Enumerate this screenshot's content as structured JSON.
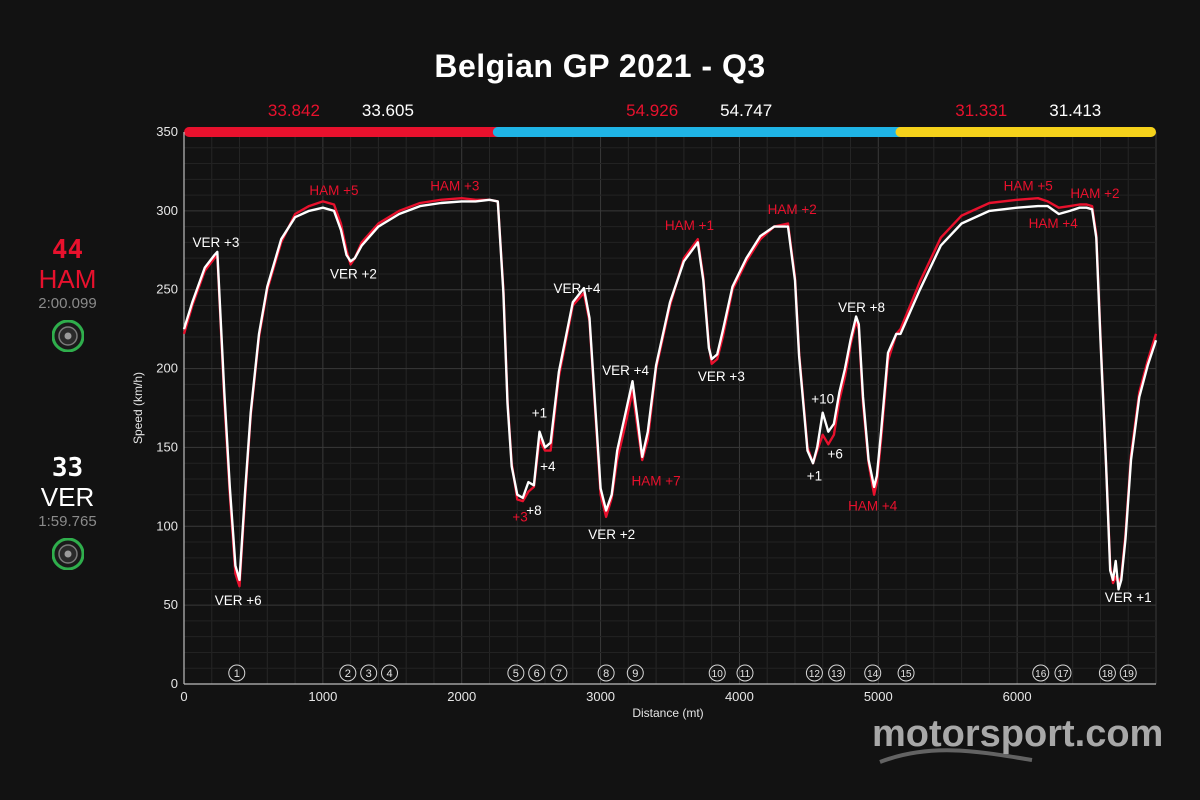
{
  "title": "Belgian GP 2021 - Q3",
  "drivers": {
    "ham": {
      "number": "44",
      "code": "HAM",
      "lap_time": "2:00.099",
      "color": "#e8112d",
      "tyre": "soft-green-tyre-icon"
    },
    "ver": {
      "number": "33",
      "code": "VER",
      "lap_time": "1:59.765",
      "color": "#ffffff",
      "tyre": "soft-green-tyre-icon"
    }
  },
  "watermark": "motorsport.com",
  "chart_data": {
    "type": "line",
    "xlabel": "Distance (mt)",
    "ylabel": "Speed (km/h)",
    "xlim": [
      0,
      7000
    ],
    "ylim": [
      0,
      350
    ],
    "xticks": [
      0,
      1000,
      2000,
      3000,
      4000,
      5000,
      6000
    ],
    "yticks": [
      0,
      50,
      100,
      150,
      200,
      250,
      300,
      350
    ],
    "grid": true,
    "sectors": [
      {
        "x_start": 0,
        "x_end": 2260,
        "color": "#e8112d",
        "ham": "33.842",
        "ver": "33.605"
      },
      {
        "x_start": 2260,
        "x_end": 5160,
        "color": "#1fb4e6",
        "ham": "54.926",
        "ver": "54.747"
      },
      {
        "x_start": 5160,
        "x_end": 7000,
        "color": "#f5d21b",
        "ham": "31.331",
        "ver": "31.413"
      }
    ],
    "corners": [
      {
        "label": "1",
        "x": 380
      },
      {
        "label": "2",
        "x": 1180
      },
      {
        "label": "3",
        "x": 1330
      },
      {
        "label": "4",
        "x": 1480
      },
      {
        "label": "5",
        "x": 2390
      },
      {
        "label": "6",
        "x": 2540
      },
      {
        "label": "7",
        "x": 2700
      },
      {
        "label": "8",
        "x": 3040
      },
      {
        "label": "9",
        "x": 3250
      },
      {
        "label": "10",
        "x": 3840
      },
      {
        "label": "11",
        "x": 4040
      },
      {
        "label": "12",
        "x": 4540
      },
      {
        "label": "13",
        "x": 4700
      },
      {
        "label": "14",
        "x": 4960
      },
      {
        "label": "15",
        "x": 5200
      },
      {
        "label": "16",
        "x": 6170
      },
      {
        "label": "17",
        "x": 6330
      },
      {
        "label": "18",
        "x": 6650
      },
      {
        "label": "19",
        "x": 6800
      }
    ],
    "series": [
      {
        "name": "HAM",
        "color": "#e8112d",
        "x": [
          0,
          60,
          150,
          220,
          240,
          290,
          330,
          370,
          400,
          440,
          480,
          540,
          600,
          700,
          800,
          900,
          1000,
          1080,
          1130,
          1170,
          1200,
          1230,
          1280,
          1400,
          1550,
          1700,
          1850,
          2000,
          2100,
          2200,
          2260,
          2300,
          2330,
          2360,
          2400,
          2440,
          2480,
          2520,
          2560,
          2600,
          2640,
          2700,
          2800,
          2880,
          2920,
          2960,
          3000,
          3040,
          3080,
          3120,
          3180,
          3230,
          3270,
          3300,
          3340,
          3400,
          3500,
          3600,
          3700,
          3740,
          3780,
          3800,
          3840,
          3880,
          3950,
          4050,
          4150,
          4250,
          4350,
          4400,
          4430,
          4460,
          4490,
          4530,
          4560,
          4600,
          4640,
          4680,
          4720,
          4760,
          4800,
          4840,
          4860,
          4890,
          4930,
          4970,
          4990,
          5020,
          5070,
          5130,
          5160,
          5300,
          5450,
          5600,
          5800,
          6000,
          6150,
          6220,
          6300,
          6380,
          6450,
          6500,
          6540,
          6570,
          6600,
          6640,
          6670,
          6690,
          6710,
          6730,
          6750,
          6780,
          6820,
          6880,
          6940,
          7000
        ],
        "y": [
          222,
          240,
          262,
          270,
          272,
          180,
          120,
          70,
          62,
          118,
          170,
          220,
          250,
          280,
          298,
          303,
          306,
          304,
          292,
          275,
          266,
          270,
          280,
          292,
          300,
          305,
          307,
          308,
          307,
          307,
          306,
          250,
          180,
          140,
          117,
          116,
          122,
          125,
          155,
          148,
          148,
          195,
          240,
          248,
          230,
          175,
          120,
          106,
          118,
          142,
          165,
          186,
          160,
          142,
          155,
          200,
          240,
          270,
          282,
          258,
          215,
          203,
          206,
          220,
          250,
          268,
          282,
          290,
          292,
          258,
          210,
          180,
          150,
          140,
          148,
          158,
          152,
          158,
          180,
          195,
          215,
          230,
          225,
          178,
          140,
          120,
          128,
          155,
          205,
          222,
          225,
          255,
          283,
          297,
          305,
          307,
          308,
          306,
          302,
          303,
          304,
          304,
          303,
          285,
          220,
          140,
          75,
          64,
          68,
          64,
          68,
          95,
          145,
          185,
          205,
          222
        ]
      },
      {
        "name": "VER",
        "color": "#ffffff",
        "x": [
          0,
          60,
          150,
          220,
          240,
          290,
          330,
          370,
          400,
          440,
          480,
          540,
          600,
          700,
          800,
          900,
          1000,
          1080,
          1130,
          1170,
          1200,
          1230,
          1280,
          1400,
          1550,
          1700,
          1850,
          2000,
          2100,
          2200,
          2260,
          2300,
          2330,
          2360,
          2400,
          2440,
          2480,
          2520,
          2560,
          2600,
          2640,
          2700,
          2800,
          2880,
          2920,
          2960,
          3000,
          3040,
          3080,
          3120,
          3180,
          3230,
          3270,
          3300,
          3340,
          3400,
          3500,
          3600,
          3700,
          3740,
          3780,
          3800,
          3840,
          3880,
          3950,
          4050,
          4150,
          4250,
          4350,
          4400,
          4430,
          4460,
          4490,
          4530,
          4560,
          4600,
          4640,
          4680,
          4720,
          4760,
          4800,
          4840,
          4860,
          4890,
          4930,
          4970,
          4990,
          5020,
          5070,
          5130,
          5160,
          5300,
          5450,
          5600,
          5800,
          6000,
          6150,
          6220,
          6300,
          6380,
          6450,
          6500,
          6540,
          6570,
          6600,
          6640,
          6670,
          6690,
          6710,
          6730,
          6750,
          6780,
          6820,
          6880,
          6940,
          7000
        ],
        "y": [
          225,
          242,
          264,
          272,
          274,
          185,
          125,
          75,
          66,
          122,
          172,
          222,
          252,
          282,
          296,
          300,
          302,
          300,
          288,
          272,
          268,
          270,
          278,
          290,
          298,
          303,
          305,
          306,
          306,
          307,
          306,
          248,
          178,
          138,
          120,
          118,
          128,
          126,
          160,
          150,
          153,
          198,
          242,
          251,
          232,
          178,
          124,
          110,
          120,
          148,
          172,
          192,
          165,
          144,
          160,
          202,
          242,
          268,
          280,
          256,
          213,
          206,
          209,
          224,
          252,
          270,
          284,
          290,
          290,
          256,
          208,
          178,
          148,
          140,
          150,
          172,
          160,
          165,
          185,
          200,
          218,
          233,
          228,
          182,
          142,
          125,
          132,
          160,
          210,
          222,
          222,
          250,
          278,
          292,
          300,
          302,
          303,
          303,
          298,
          300,
          302,
          302,
          301,
          283,
          218,
          140,
          72,
          66,
          78,
          60,
          66,
          92,
          142,
          182,
          202,
          218
        ]
      }
    ],
    "annotations": [
      {
        "text": "VER +3",
        "x": 230,
        "y": 277,
        "color": "#ffffff",
        "anchor": "middle"
      },
      {
        "text": "VER +6",
        "x": 390,
        "y": 50,
        "color": "#ffffff",
        "anchor": "middle"
      },
      {
        "text": "HAM +5",
        "x": 1080,
        "y": 310,
        "color": "#e8112d",
        "anchor": "middle"
      },
      {
        "text": "VER +2",
        "x": 1220,
        "y": 257,
        "color": "#ffffff",
        "anchor": "middle"
      },
      {
        "text": "HAM +3",
        "x": 1950,
        "y": 313,
        "color": "#e8112d",
        "anchor": "middle"
      },
      {
        "text": "+1",
        "x": 2560,
        "y": 169,
        "color": "#ffffff",
        "anchor": "middle"
      },
      {
        "text": "+4",
        "x": 2620,
        "y": 135,
        "color": "#ffffff",
        "anchor": "middle"
      },
      {
        "text": "+3",
        "x": 2420,
        "y": 103,
        "color": "#e8112d",
        "anchor": "middle"
      },
      {
        "text": "+8",
        "x": 2520,
        "y": 107,
        "color": "#ffffff",
        "anchor": "middle"
      },
      {
        "text": "VER +4",
        "x": 2830,
        "y": 248,
        "color": "#ffffff",
        "anchor": "middle"
      },
      {
        "text": "VER +2",
        "x": 3080,
        "y": 92,
        "color": "#ffffff",
        "anchor": "middle"
      },
      {
        "text": "VER +4",
        "x": 3180,
        "y": 196,
        "color": "#ffffff",
        "anchor": "middle"
      },
      {
        "text": "HAM +7",
        "x": 3400,
        "y": 126,
        "color": "#e8112d",
        "anchor": "middle"
      },
      {
        "text": "HAM +1",
        "x": 3640,
        "y": 288,
        "color": "#e8112d",
        "anchor": "middle"
      },
      {
        "text": "VER +3",
        "x": 3870,
        "y": 192,
        "color": "#ffffff",
        "anchor": "middle"
      },
      {
        "text": "HAM +2",
        "x": 4380,
        "y": 298,
        "color": "#e8112d",
        "anchor": "middle"
      },
      {
        "text": "+10",
        "x": 4600,
        "y": 178,
        "color": "#ffffff",
        "anchor": "middle"
      },
      {
        "text": "+6",
        "x": 4690,
        "y": 143,
        "color": "#ffffff",
        "anchor": "middle"
      },
      {
        "text": "+1",
        "x": 4540,
        "y": 129,
        "color": "#ffffff",
        "anchor": "middle"
      },
      {
        "text": "VER +8",
        "x": 4880,
        "y": 236,
        "color": "#ffffff",
        "anchor": "middle"
      },
      {
        "text": "HAM +4",
        "x": 4960,
        "y": 110,
        "color": "#e8112d",
        "anchor": "middle"
      },
      {
        "text": "HAM +5",
        "x": 6080,
        "y": 313,
        "color": "#e8112d",
        "anchor": "middle"
      },
      {
        "text": "HAM +4",
        "x": 6260,
        "y": 289,
        "color": "#e8112d",
        "anchor": "middle"
      },
      {
        "text": "HAM +2",
        "x": 6560,
        "y": 308,
        "color": "#e8112d",
        "anchor": "middle"
      },
      {
        "text": "VER +1",
        "x": 6800,
        "y": 52,
        "color": "#ffffff",
        "anchor": "middle"
      }
    ]
  }
}
